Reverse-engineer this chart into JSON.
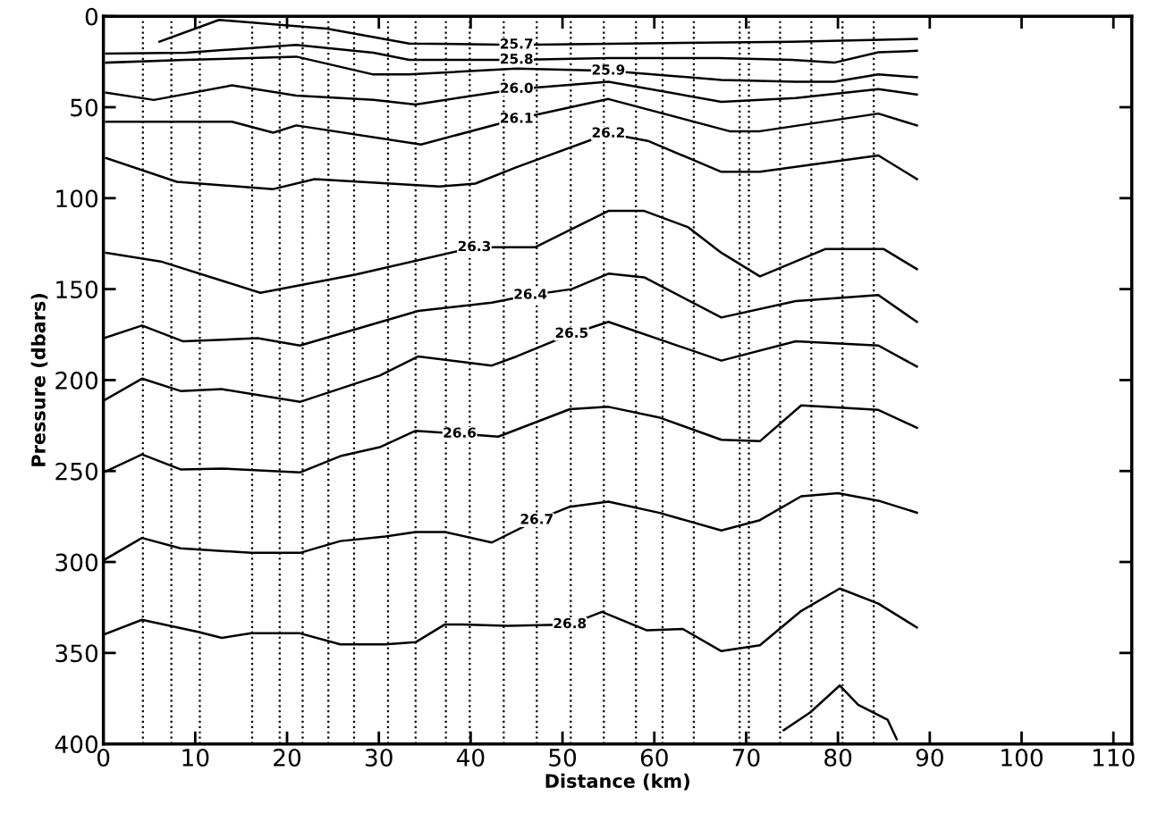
{
  "chart_data": {
    "type": "line",
    "xlabel": "Distance (km)",
    "ylabel": "Pressure (dbars)",
    "xlim": [
      0,
      112
    ],
    "ylim": [
      400,
      0
    ],
    "xticks": [
      0,
      10,
      20,
      30,
      40,
      50,
      60,
      70,
      80,
      90,
      100,
      110
    ],
    "yticks": [
      0,
      50,
      100,
      150,
      200,
      250,
      300,
      350,
      400
    ],
    "grid": false,
    "legend": false,
    "marker": "none",
    "line_style": "solid",
    "ref_lines": [
      {
        "axis": "x",
        "value": 4.3,
        "color": "#000000",
        "line_style": "dotted"
      },
      {
        "axis": "x",
        "value": 7.4,
        "color": "#000000",
        "line_style": "dotted"
      },
      {
        "axis": "x",
        "value": 10.5,
        "color": "#000000",
        "line_style": "dotted"
      },
      {
        "axis": "x",
        "value": 16.2,
        "color": "#000000",
        "line_style": "dotted"
      },
      {
        "axis": "x",
        "value": 19.2,
        "color": "#000000",
        "line_style": "dotted"
      },
      {
        "axis": "x",
        "value": 21.7,
        "color": "#000000",
        "line_style": "dotted"
      },
      {
        "axis": "x",
        "value": 24.5,
        "color": "#000000",
        "line_style": "dotted"
      },
      {
        "axis": "x",
        "value": 27.3,
        "color": "#000000",
        "line_style": "dotted"
      },
      {
        "axis": "x",
        "value": 31,
        "color": "#000000",
        "line_style": "dotted"
      },
      {
        "axis": "x",
        "value": 34,
        "color": "#000000",
        "line_style": "dotted"
      },
      {
        "axis": "x",
        "value": 37.3,
        "color": "#000000",
        "line_style": "dotted"
      },
      {
        "axis": "x",
        "value": 39.9,
        "color": "#000000",
        "line_style": "dotted"
      },
      {
        "axis": "x",
        "value": 43.6,
        "color": "#000000",
        "line_style": "dotted"
      },
      {
        "axis": "x",
        "value": 47.2,
        "color": "#000000",
        "line_style": "dotted"
      },
      {
        "axis": "x",
        "value": 50.9,
        "color": "#000000",
        "line_style": "dotted"
      },
      {
        "axis": "x",
        "value": 54.5,
        "color": "#000000",
        "line_style": "dotted"
      },
      {
        "axis": "x",
        "value": 58,
        "color": "#000000",
        "line_style": "dotted"
      },
      {
        "axis": "x",
        "value": 60.9,
        "color": "#000000",
        "line_style": "dotted"
      },
      {
        "axis": "x",
        "value": 64.3,
        "color": "#000000",
        "line_style": "dotted"
      },
      {
        "axis": "x",
        "value": 69.3,
        "color": "#000000",
        "line_style": "dotted"
      },
      {
        "axis": "x",
        "value": 70.3,
        "color": "#000000",
        "line_style": "dotted"
      },
      {
        "axis": "x",
        "value": 73.7,
        "color": "#000000",
        "line_style": "dotted"
      },
      {
        "axis": "x",
        "value": 77.1,
        "color": "#000000",
        "line_style": "dotted"
      },
      {
        "axis": "x",
        "value": 80.5,
        "color": "#000000",
        "line_style": "dotted"
      },
      {
        "axis": "x",
        "value": 83.9,
        "color": "#000000",
        "line_style": "dotted"
      }
    ],
    "series": [
      {
        "name": "25.7",
        "color": "#000000",
        "x": [
          6.1,
          12.6,
          24.3,
          33.3,
          45,
          75,
          88.6
        ],
        "values": [
          14,
          2,
          6.8,
          15,
          15.7,
          14,
          12.5
        ]
      },
      {
        "name": "25.8",
        "color": "#000000",
        "x": [
          0.3,
          9,
          21,
          29.4,
          33.3,
          45,
          55,
          67,
          75,
          79.6,
          84.4,
          88.6
        ],
        "values": [
          20.5,
          20,
          15.7,
          20,
          24,
          24,
          23,
          23,
          24,
          25.5,
          19.8,
          19
        ]
      },
      {
        "name": "25.9",
        "color": "#000000",
        "x": [
          0.3,
          9,
          21,
          29.4,
          33.3,
          45,
          55,
          67.3,
          75.4,
          79.6,
          84.4,
          88.6
        ],
        "values": [
          25.5,
          24,
          22.2,
          32,
          32,
          28.8,
          30,
          35,
          36,
          36,
          32,
          33.5
        ]
      },
      {
        "name": "26.0",
        "color": "#000000",
        "x": [
          0.3,
          5.5,
          14,
          21,
          29.4,
          34,
          45,
          55,
          67.3,
          75.4,
          84.4,
          88.6
        ],
        "values": [
          42,
          46,
          38,
          43.6,
          46,
          48.5,
          40,
          36,
          47,
          45,
          40,
          43
        ]
      },
      {
        "name": "26.1",
        "color": "#000000",
        "x": [
          0.3,
          14,
          18.5,
          21,
          34.6,
          45,
          55,
          68.2,
          71.5,
          84.4,
          88.6
        ],
        "values": [
          58,
          58,
          64,
          60,
          70.5,
          56.5,
          45.5,
          63.2,
          63.2,
          53.5,
          60
        ]
      },
      {
        "name": "26.2",
        "color": "#000000",
        "x": [
          0.3,
          8,
          18.5,
          23,
          36.6,
          40.5,
          45,
          55,
          59.3,
          67.3,
          71.5,
          84.4,
          88.6
        ],
        "values": [
          78,
          91,
          95,
          89.5,
          93.6,
          92,
          83,
          64.5,
          68.5,
          85.5,
          85.5,
          76.5,
          89.5
        ]
      },
      {
        "name": "26.3",
        "color": "#000000",
        "x": [
          0.3,
          6.4,
          17.1,
          27.5,
          40.4,
          47,
          55,
          58.9,
          63.7,
          67.3,
          71.5,
          78.6,
          85,
          88.6
        ],
        "values": [
          130,
          135,
          152,
          142,
          127,
          127,
          107,
          107,
          116,
          130,
          143,
          128,
          128,
          139
        ]
      },
      {
        "name": "26.4",
        "color": "#000000",
        "x": [
          0,
          4.2,
          8.7,
          16.8,
          21.4,
          34.3,
          42.3,
          46.5,
          51,
          55,
          58.9,
          67.3,
          75.4,
          84.4,
          88.6
        ],
        "values": [
          177,
          170,
          178.7,
          177,
          181,
          162,
          157.4,
          153.3,
          150,
          141.5,
          143.5,
          165.6,
          156.6,
          153.3,
          168
        ]
      },
      {
        "name": "26.5",
        "color": "#000000",
        "x": [
          0,
          4.2,
          8.4,
          12.9,
          21.4,
          30.1,
          34.3,
          42.3,
          45,
          51,
          55,
          67.3,
          75.4,
          84.4,
          88.6
        ],
        "values": [
          211.4,
          199.2,
          206,
          205,
          212,
          197.5,
          187,
          192,
          187,
          174.6,
          168,
          189.3,
          178.7,
          181,
          192.6
        ]
      },
      {
        "name": "26.6",
        "color": "#000000",
        "x": [
          0,
          4.2,
          8.4,
          12.9,
          21.4,
          25.8,
          30.1,
          34,
          38.8,
          43,
          50.8,
          55,
          60.5,
          67.3,
          71.5,
          76,
          84.4,
          88.6
        ],
        "values": [
          250.8,
          240.9,
          249.1,
          248.6,
          250.8,
          241.8,
          236.9,
          227.9,
          229.5,
          231.1,
          216,
          214.7,
          220.5,
          232.8,
          233.6,
          213.9,
          216.4,
          226.2
        ]
      },
      {
        "name": "26.7",
        "color": "#000000",
        "x": [
          0,
          4.2,
          8.4,
          16.1,
          21.4,
          25.8,
          30.7,
          34,
          37.2,
          42.3,
          47.2,
          50.8,
          55,
          60.5,
          67.3,
          71.5,
          76,
          80,
          84.4,
          88.6
        ],
        "values": [
          299.1,
          286.8,
          292.5,
          295,
          295,
          288.5,
          286,
          283.5,
          283.5,
          289.3,
          277,
          269.6,
          266.8,
          272.9,
          282.7,
          277,
          263.9,
          262.2,
          266.3,
          272.9
        ]
      },
      {
        "name": "26.8",
        "color": "#000000",
        "x": [
          0,
          4.2,
          10.3,
          12.9,
          16.1,
          21.4,
          25.8,
          30.7,
          34,
          37.2,
          39.1,
          44,
          50.8,
          54.3,
          59.2,
          63.1,
          67.3,
          71.5,
          76,
          80.2,
          84.4,
          88.6
        ],
        "values": [
          340,
          331.8,
          338.4,
          341.7,
          339.2,
          339.2,
          345.3,
          345.3,
          344.1,
          334.3,
          334.3,
          335.1,
          334.3,
          327.4,
          337.6,
          336.8,
          349,
          345.8,
          326.9,
          314.6,
          322.9,
          336
        ]
      },
      {
        "color": "#000000",
        "x": [
          74.1,
          77,
          80.2,
          82.2,
          85.4,
          86.4
        ],
        "values": [
          392.5,
          382.6,
          367.9,
          378.5,
          386.7,
          397.4
        ]
      }
    ]
  }
}
